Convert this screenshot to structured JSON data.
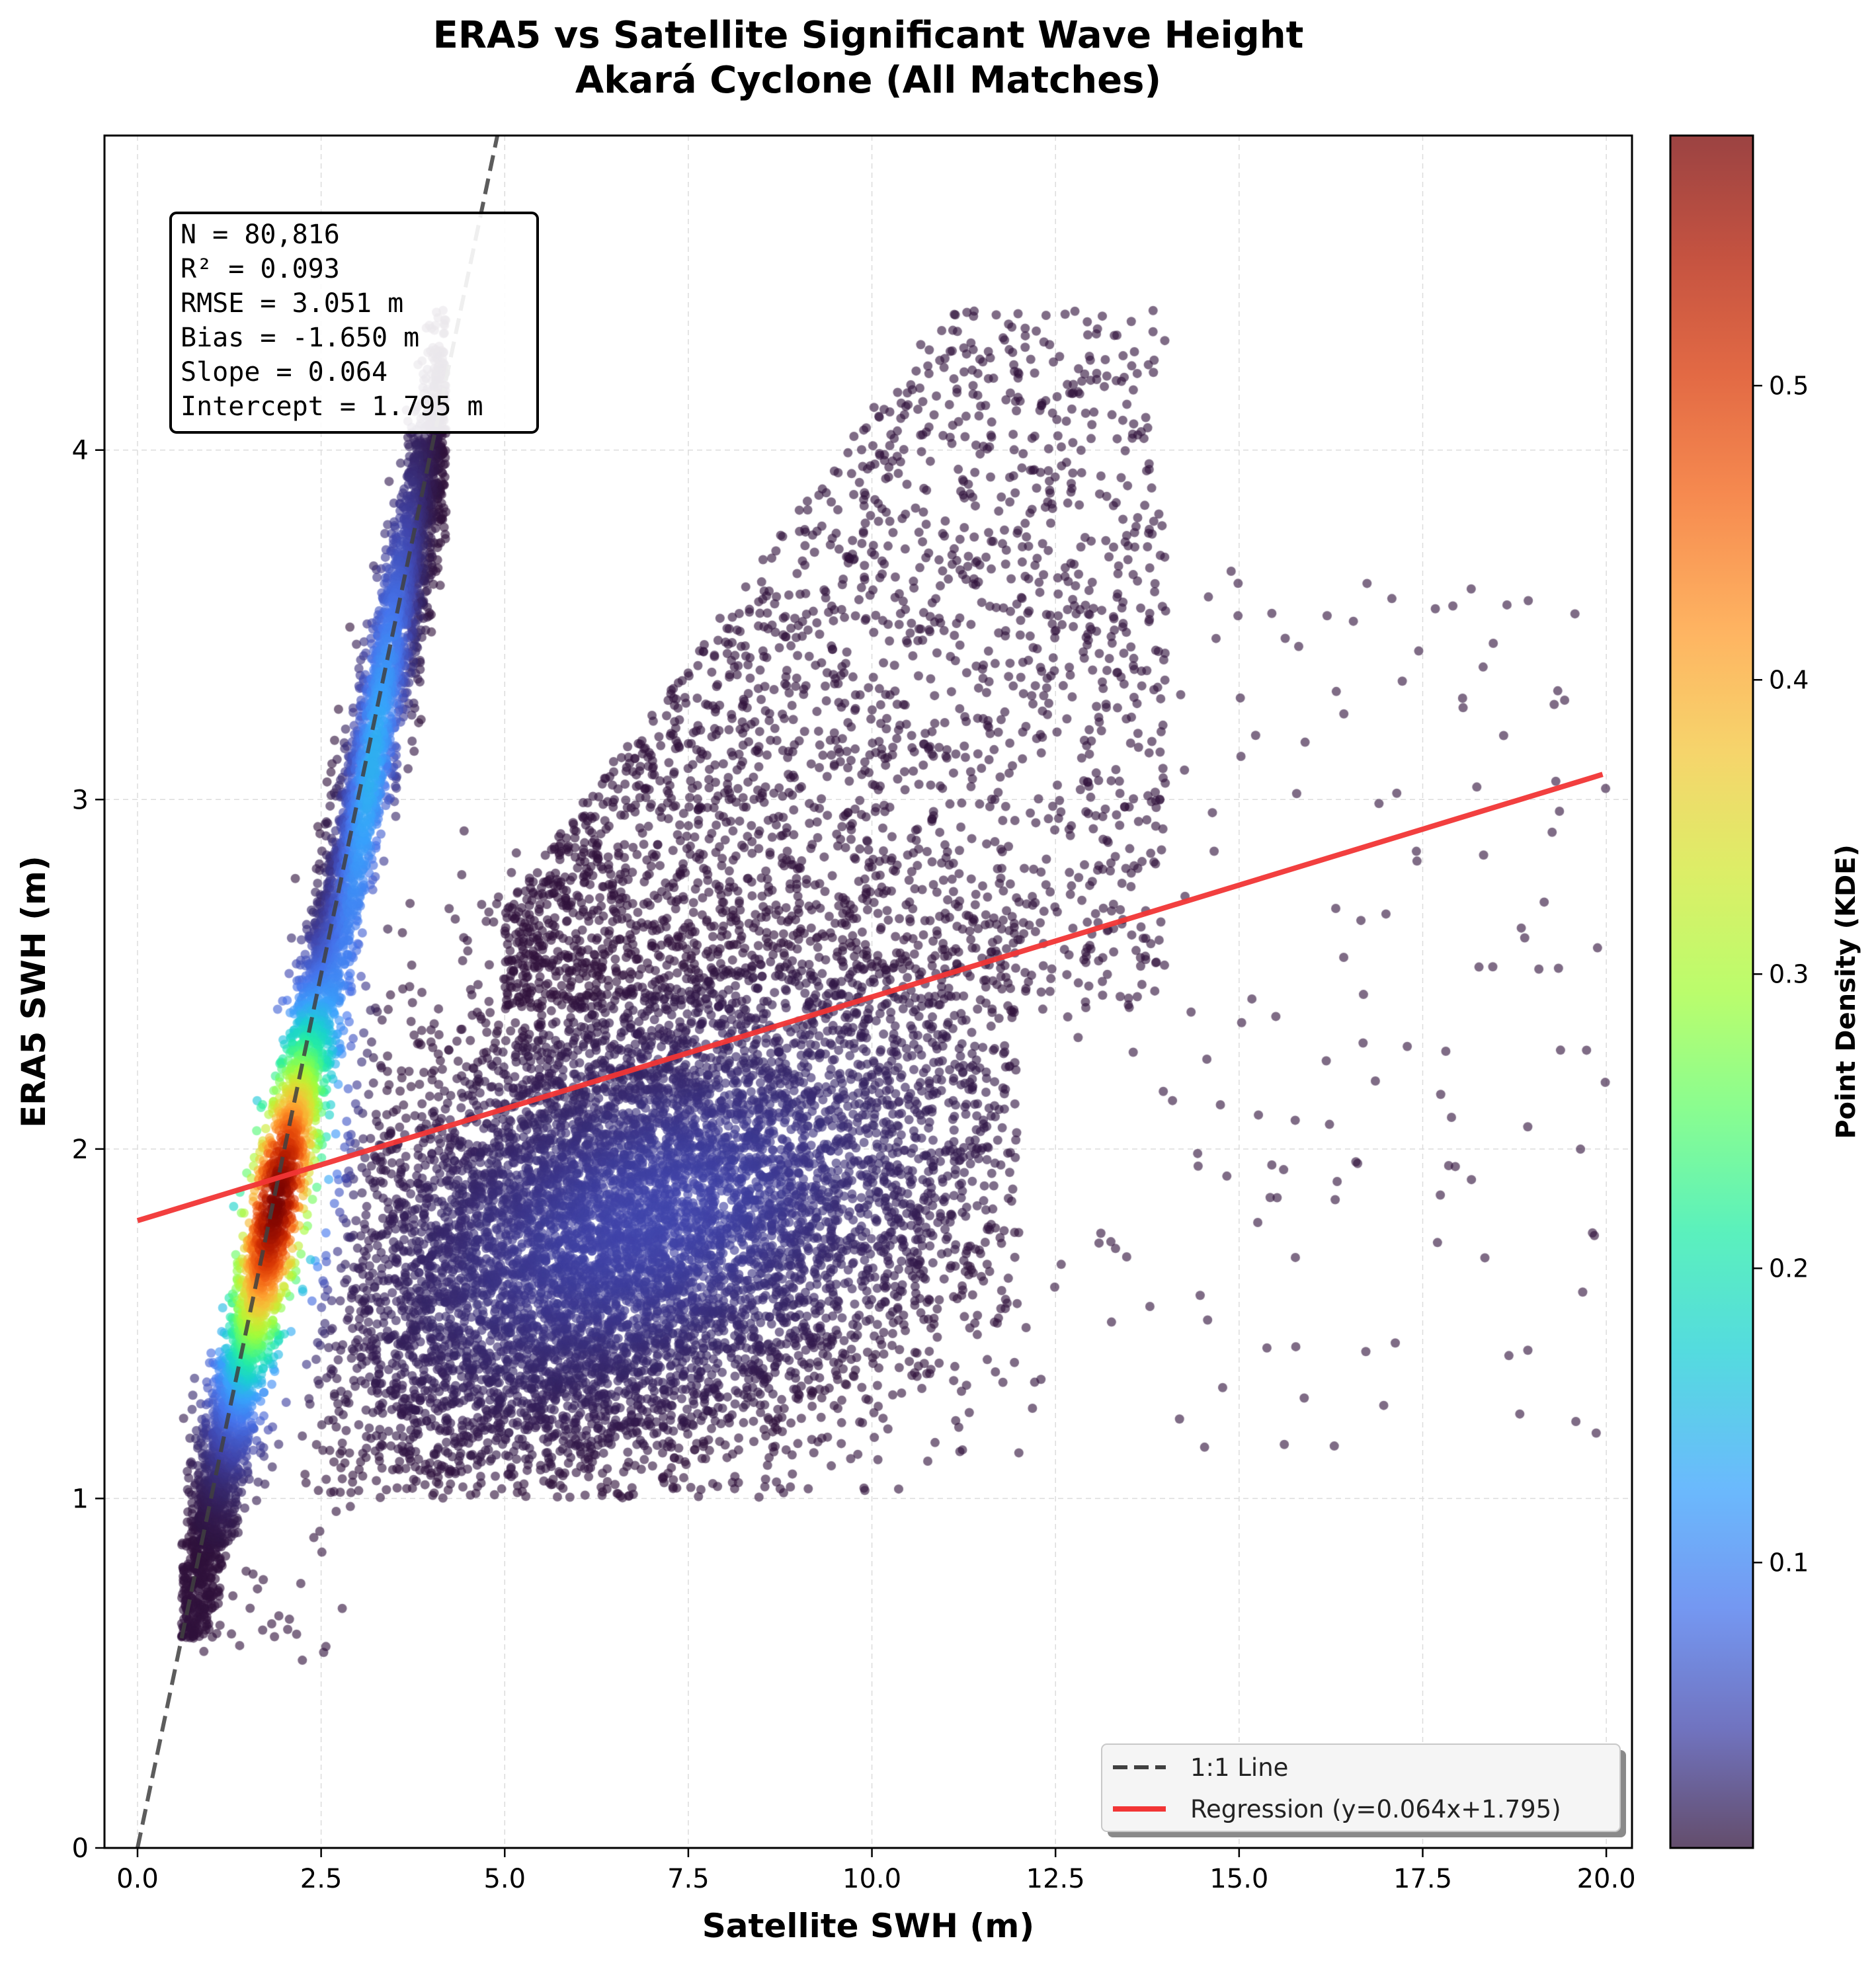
{
  "chart_data": {
    "type": "scatter",
    "title": "ERA5 vs Satellite Significant Wave Height",
    "subtitle": "Akará Cyclone (All Matches)",
    "xlabel": "Satellite SWH (m)",
    "ylabel": "ERA5 SWH (m)",
    "xlim": [
      -0.45,
      20.35
    ],
    "ylim": [
      0,
      4.9
    ],
    "x_ticks": [
      0,
      2.5,
      5,
      7.5,
      10,
      12.5,
      15,
      17.5,
      20
    ],
    "x_tick_labels": [
      "0.0",
      "2.5",
      "5.0",
      "7.5",
      "10.0",
      "12.5",
      "15.0",
      "17.5",
      "20.0"
    ],
    "y_ticks": [
      0,
      1,
      2,
      3,
      4
    ],
    "y_tick_labels": [
      "0",
      "1",
      "2",
      "3",
      "4"
    ],
    "grid": true,
    "colorbar": {
      "label": "Point Density (KDE)",
      "range": [
        0.003,
        0.585
      ],
      "ticks": [
        0.1,
        0.2,
        0.3,
        0.4,
        0.5
      ],
      "tick_labels": [
        "0.1",
        "0.2",
        "0.3",
        "0.4",
        "0.5"
      ],
      "colormap": "turbo"
    },
    "series": [
      {
        "name": "1:1 Line",
        "kind": "line",
        "style": "dashed",
        "color": "#404040",
        "x": [
          0,
          5
        ],
        "y": [
          0,
          5
        ]
      },
      {
        "name": "Regression (y=0.064x+1.795)",
        "kind": "line",
        "style": "solid",
        "color": "#f23535",
        "slope": 0.064,
        "intercept": 1.795,
        "x": [
          0,
          19.95
        ],
        "y": [
          1.795,
          3.072
        ]
      }
    ],
    "density_clusters": [
      {
        "cx": 1.9,
        "cy": 1.85,
        "sx": 0.45,
        "sy": 0.32,
        "corr": 0.55,
        "peak": 0.58
      },
      {
        "cx": 3.2,
        "cy": 3.1,
        "sx": 0.35,
        "sy": 0.45,
        "corr": 0.8,
        "peak": 0.14
      },
      {
        "cx": 7.0,
        "cy": 1.8,
        "sx": 2.4,
        "sy": 0.35,
        "corr": 0.4,
        "peak": 0.045
      }
    ],
    "stats": {
      "lines": [
        "N = 80,816",
        "R² = 0.093",
        "RMSE = 3.051 m",
        "Bias = -1.650 m",
        "Slope = 0.064",
        "Intercept = 1.795 m"
      ]
    },
    "legend": {
      "position": "bottom-right",
      "entries": [
        "1:1 Line",
        "Regression (y=0.064x+1.795)"
      ]
    },
    "colors": {
      "low_density": "#30123b",
      "high_density": "#7a0403",
      "one_to_one": "#404040",
      "regression": "#f23535"
    }
  }
}
